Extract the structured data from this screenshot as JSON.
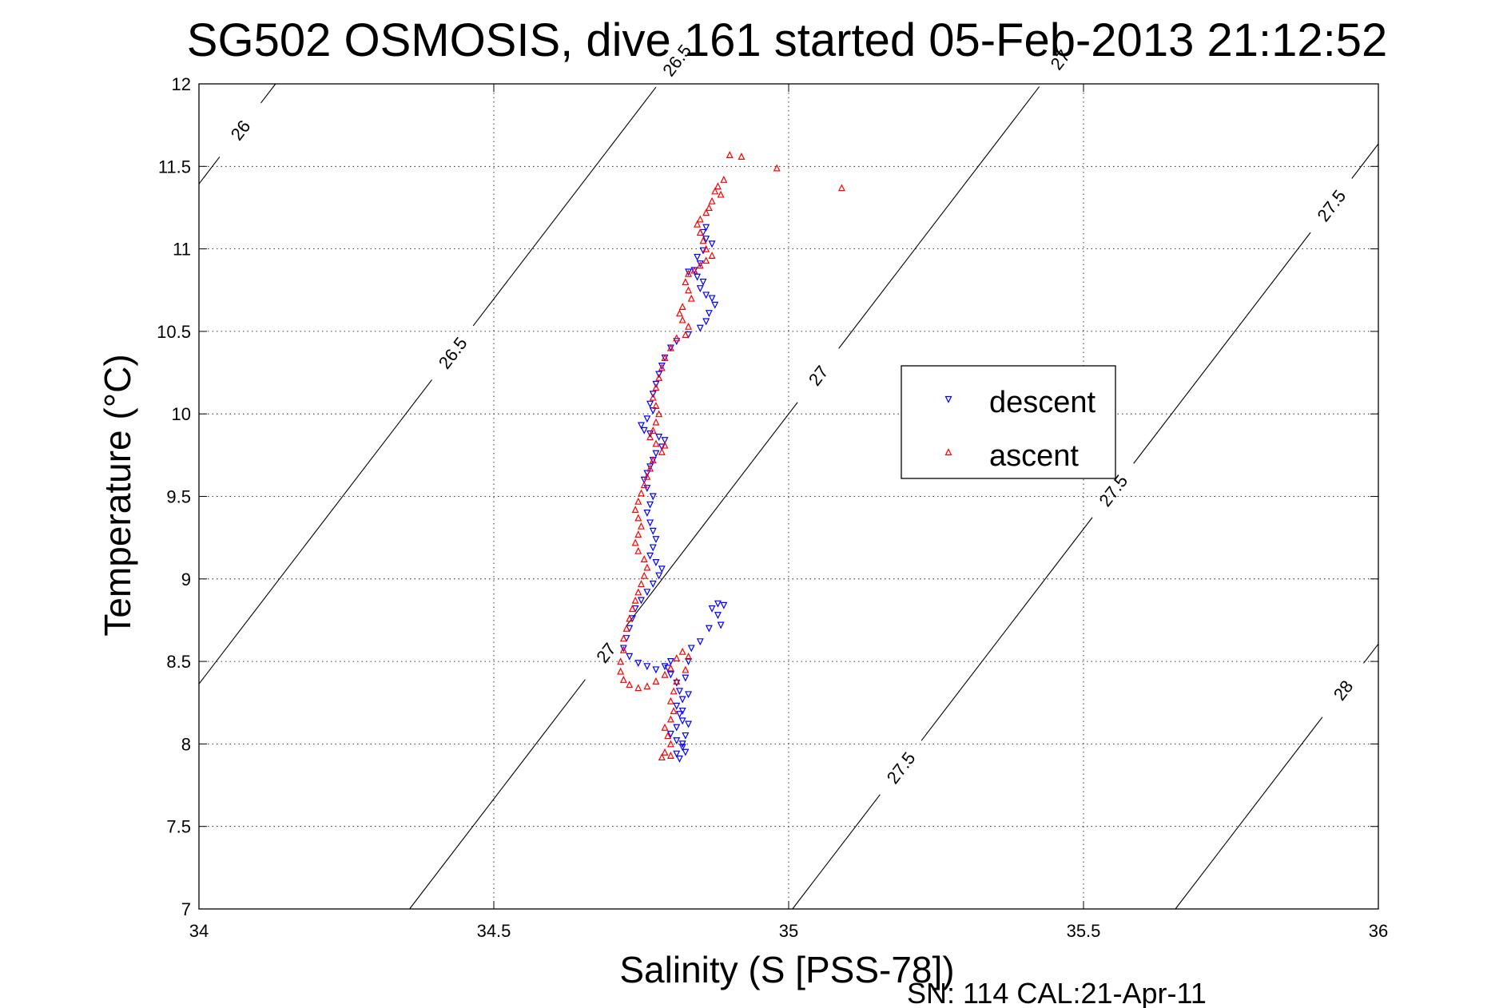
{
  "chart_data": {
    "type": "scatter",
    "title": "SG502 OSMOSIS, dive 161 started 05-Feb-2013 21:12:52",
    "xlabel": "Salinity (S [PSS-78])",
    "ylabel": "Temperature (°C)",
    "xlim": [
      34,
      36
    ],
    "ylim": [
      7,
      12
    ],
    "xticks": [
      "34",
      "34.5",
      "35",
      "35.5",
      "36"
    ],
    "yticks": [
      "7",
      "7.5",
      "8",
      "8.5",
      "9",
      "9.5",
      "10",
      "10.5",
      "11",
      "11.5",
      "12"
    ],
    "grid": true,
    "legend_position": "right",
    "footnote": "SN: 114  CAL:21-Apr-11",
    "density_contours": [
      {
        "level": "26",
        "label_points": [
          [
            34.07,
            11.25
          ]
        ]
      },
      {
        "level": "26.5",
        "label_points": [
          [
            34.43,
            9.9
          ],
          [
            34.81,
            11.64
          ]
        ]
      },
      {
        "level": "27",
        "label_points": [
          [
            34.69,
            8.15
          ],
          [
            35.05,
            9.95
          ],
          [
            35.46,
            11.68
          ]
        ]
      },
      {
        "level": "27.5",
        "label_points": [
          [
            35.19,
            7.5
          ],
          [
            35.55,
            9.27
          ],
          [
            35.92,
            11.03
          ]
        ]
      },
      {
        "level": "28",
        "label_points": [
          [
            35.94,
            8.09
          ]
        ]
      }
    ],
    "series": [
      {
        "name": "descent",
        "color": "#0000ff",
        "marker": "triangle-down",
        "points": [
          [
            34.86,
            11.13
          ],
          [
            34.855,
            11.1
          ],
          [
            34.86,
            11.06
          ],
          [
            34.87,
            11.03
          ],
          [
            34.855,
            10.99
          ],
          [
            34.845,
            10.95
          ],
          [
            34.85,
            10.91
          ],
          [
            34.84,
            10.87
          ],
          [
            34.83,
            10.86
          ],
          [
            34.845,
            10.83
          ],
          [
            34.855,
            10.8
          ],
          [
            34.85,
            10.76
          ],
          [
            34.86,
            10.72
          ],
          [
            34.87,
            10.7
          ],
          [
            34.875,
            10.66
          ],
          [
            34.865,
            10.61
          ],
          [
            34.86,
            10.56
          ],
          [
            34.85,
            10.52
          ],
          [
            34.83,
            10.48
          ],
          [
            34.81,
            10.44
          ],
          [
            34.8,
            10.4
          ],
          [
            34.79,
            10.34
          ],
          [
            34.785,
            10.29
          ],
          [
            34.78,
            10.24
          ],
          [
            34.775,
            10.18
          ],
          [
            34.77,
            10.12
          ],
          [
            34.765,
            10.06
          ],
          [
            34.77,
            10.02
          ],
          [
            34.76,
            9.97
          ],
          [
            34.75,
            9.93
          ],
          [
            34.755,
            9.9
          ],
          [
            34.765,
            9.88
          ],
          [
            34.78,
            9.86
          ],
          [
            34.79,
            9.84
          ],
          [
            34.785,
            9.8
          ],
          [
            34.775,
            9.76
          ],
          [
            34.77,
            9.72
          ],
          [
            34.765,
            9.68
          ],
          [
            34.76,
            9.64
          ],
          [
            34.755,
            9.6
          ],
          [
            34.76,
            9.55
          ],
          [
            34.77,
            9.5
          ],
          [
            34.765,
            9.45
          ],
          [
            34.76,
            9.4
          ],
          [
            34.765,
            9.34
          ],
          [
            34.77,
            9.29
          ],
          [
            34.775,
            9.24
          ],
          [
            34.77,
            9.19
          ],
          [
            34.765,
            9.14
          ],
          [
            34.775,
            9.1
          ],
          [
            34.785,
            9.06
          ],
          [
            34.78,
            9.02
          ],
          [
            34.77,
            8.97
          ],
          [
            34.76,
            8.92
          ],
          [
            34.75,
            8.87
          ],
          [
            34.74,
            8.82
          ],
          [
            34.735,
            8.76
          ],
          [
            34.73,
            8.7
          ],
          [
            34.725,
            8.64
          ],
          [
            34.72,
            8.58
          ],
          [
            34.73,
            8.53
          ],
          [
            34.745,
            8.49
          ],
          [
            34.76,
            8.47
          ],
          [
            34.775,
            8.45
          ],
          [
            34.79,
            8.47
          ],
          [
            34.8,
            8.5
          ],
          [
            34.795,
            8.46
          ],
          [
            34.8,
            8.42
          ],
          [
            34.81,
            8.37
          ],
          [
            34.815,
            8.32
          ],
          [
            34.82,
            8.27
          ],
          [
            34.81,
            8.23
          ],
          [
            34.815,
            8.18
          ],
          [
            34.82,
            8.14
          ],
          [
            34.81,
            8.1
          ],
          [
            34.8,
            8.06
          ],
          [
            34.81,
            8.02
          ],
          [
            34.82,
            7.98
          ],
          [
            34.81,
            7.94
          ],
          [
            34.815,
            7.91
          ],
          [
            34.825,
            7.95
          ],
          [
            34.82,
            8.0
          ],
          [
            34.825,
            8.05
          ],
          [
            34.83,
            8.12
          ],
          [
            34.82,
            8.2
          ],
          [
            34.83,
            8.3
          ],
          [
            34.825,
            8.4
          ],
          [
            34.83,
            8.5
          ],
          [
            34.835,
            8.58
          ],
          [
            34.85,
            8.62
          ],
          [
            34.865,
            8.7
          ],
          [
            34.88,
            8.78
          ],
          [
            34.89,
            8.84
          ],
          [
            34.88,
            8.85
          ],
          [
            34.87,
            8.82
          ],
          [
            34.885,
            8.72
          ]
        ]
      },
      {
        "name": "ascent",
        "color": "#ff0000",
        "marker": "triangle-up",
        "points": [
          [
            34.9,
            11.57
          ],
          [
            34.92,
            11.56
          ],
          [
            34.98,
            11.49
          ],
          [
            35.09,
            11.37
          ],
          [
            34.89,
            11.42
          ],
          [
            34.88,
            11.38
          ],
          [
            34.875,
            11.35
          ],
          [
            34.885,
            11.33
          ],
          [
            34.87,
            11.29
          ],
          [
            34.865,
            11.25
          ],
          [
            34.86,
            11.22
          ],
          [
            34.85,
            11.18
          ],
          [
            34.845,
            11.15
          ],
          [
            34.85,
            11.1
          ],
          [
            34.855,
            11.05
          ],
          [
            34.86,
            11.0
          ],
          [
            34.87,
            10.96
          ],
          [
            34.86,
            10.93
          ],
          [
            34.85,
            10.9
          ],
          [
            34.84,
            10.87
          ],
          [
            34.83,
            10.85
          ],
          [
            34.825,
            10.8
          ],
          [
            34.83,
            10.75
          ],
          [
            34.835,
            10.7
          ],
          [
            34.82,
            10.65
          ],
          [
            34.815,
            10.61
          ],
          [
            34.82,
            10.57
          ],
          [
            34.83,
            10.53
          ],
          [
            34.825,
            10.48
          ],
          [
            34.81,
            10.46
          ],
          [
            34.8,
            10.4
          ],
          [
            34.79,
            10.34
          ],
          [
            34.785,
            10.28
          ],
          [
            34.78,
            10.22
          ],
          [
            34.775,
            10.16
          ],
          [
            34.77,
            10.1
          ],
          [
            34.775,
            10.05
          ],
          [
            34.78,
            10.0
          ],
          [
            34.775,
            9.95
          ],
          [
            34.77,
            9.9
          ],
          [
            34.765,
            9.86
          ],
          [
            34.775,
            9.82
          ],
          [
            34.79,
            9.81
          ],
          [
            34.785,
            9.77
          ],
          [
            34.77,
            9.72
          ],
          [
            34.765,
            9.67
          ],
          [
            34.76,
            9.62
          ],
          [
            34.755,
            9.57
          ],
          [
            34.75,
            9.52
          ],
          [
            34.745,
            9.47
          ],
          [
            34.74,
            9.42
          ],
          [
            34.745,
            9.37
          ],
          [
            34.75,
            9.32
          ],
          [
            34.745,
            9.27
          ],
          [
            34.74,
            9.22
          ],
          [
            34.745,
            9.17
          ],
          [
            34.755,
            9.12
          ],
          [
            34.76,
            9.07
          ],
          [
            34.755,
            9.02
          ],
          [
            34.75,
            8.97
          ],
          [
            34.745,
            8.92
          ],
          [
            34.74,
            8.87
          ],
          [
            34.735,
            8.82
          ],
          [
            34.73,
            8.76
          ],
          [
            34.725,
            8.7
          ],
          [
            34.72,
            8.64
          ],
          [
            34.72,
            8.57
          ],
          [
            34.715,
            8.5
          ],
          [
            34.715,
            8.44
          ],
          [
            34.72,
            8.39
          ],
          [
            34.73,
            8.36
          ],
          [
            34.745,
            8.34
          ],
          [
            34.76,
            8.35
          ],
          [
            34.775,
            8.38
          ],
          [
            34.79,
            8.42
          ],
          [
            34.8,
            8.46
          ],
          [
            34.81,
            8.52
          ],
          [
            34.82,
            8.56
          ],
          [
            34.83,
            8.53
          ],
          [
            34.825,
            8.45
          ],
          [
            34.81,
            8.38
          ],
          [
            34.805,
            8.32
          ],
          [
            34.8,
            8.26
          ],
          [
            34.805,
            8.2
          ],
          [
            34.8,
            8.15
          ],
          [
            34.79,
            8.1
          ],
          [
            34.795,
            8.05
          ],
          [
            34.8,
            8.0
          ],
          [
            34.79,
            7.95
          ],
          [
            34.785,
            7.92
          ],
          [
            34.8,
            7.93
          ]
        ]
      }
    ]
  }
}
